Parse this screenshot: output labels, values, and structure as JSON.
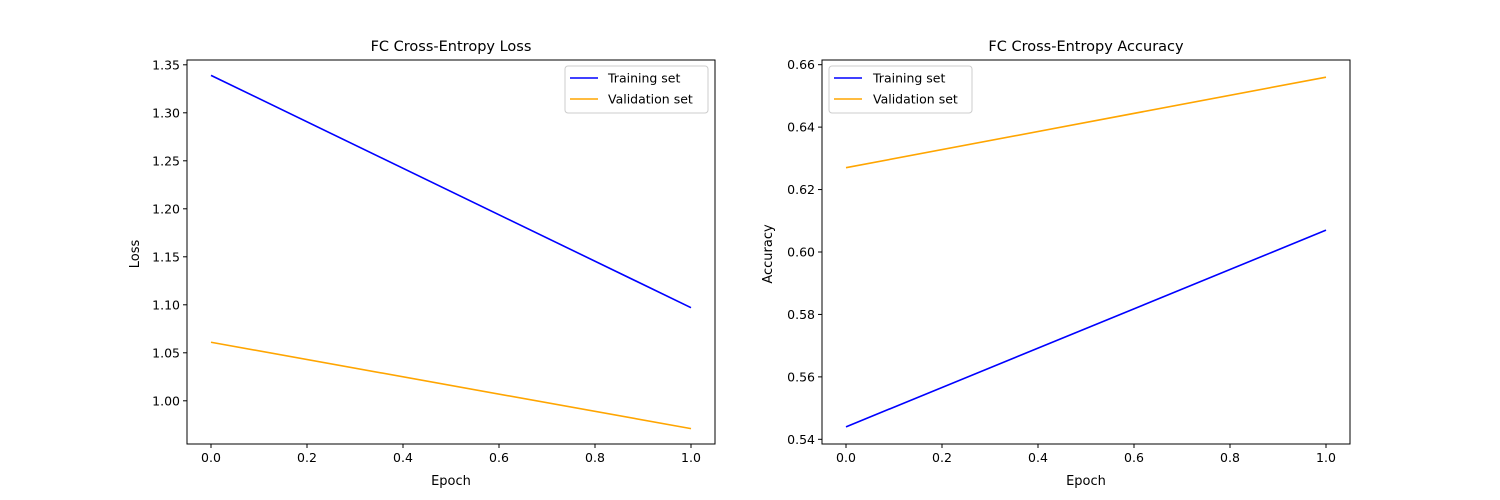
{
  "chart_data": [
    {
      "type": "line",
      "title": "FC Cross-Entropy Loss",
      "xlabel": "Epoch",
      "ylabel": "Loss",
      "xlim": [
        -0.05,
        1.05
      ],
      "ylim": [
        0.955,
        1.355
      ],
      "xticks": [
        0.0,
        0.2,
        0.4,
        0.6,
        0.8,
        1.0
      ],
      "xtick_labels": [
        "0.0",
        "0.2",
        "0.4",
        "0.6",
        "0.8",
        "1.0"
      ],
      "yticks": [
        1.0,
        1.05,
        1.1,
        1.15,
        1.2,
        1.25,
        1.3,
        1.35
      ],
      "ytick_labels": [
        "1.00",
        "1.05",
        "1.10",
        "1.15",
        "1.20",
        "1.25",
        "1.30",
        "1.35"
      ],
      "legend_position": "top-right",
      "grid": false,
      "x": [
        0,
        1
      ],
      "series": [
        {
          "name": "Training set",
          "color": "#0000ff",
          "values": [
            1.339,
            1.097
          ]
        },
        {
          "name": "Validation set",
          "color": "#ffa500",
          "values": [
            1.061,
            0.971
          ]
        }
      ]
    },
    {
      "type": "line",
      "title": "FC Cross-Entropy Accuracy",
      "xlabel": "Epoch",
      "ylabel": "Accuracy",
      "xlim": [
        -0.05,
        1.05
      ],
      "ylim": [
        0.5385,
        0.6615
      ],
      "xticks": [
        0.0,
        0.2,
        0.4,
        0.6,
        0.8,
        1.0
      ],
      "xtick_labels": [
        "0.0",
        "0.2",
        "0.4",
        "0.6",
        "0.8",
        "1.0"
      ],
      "yticks": [
        0.54,
        0.56,
        0.58,
        0.6,
        0.62,
        0.64,
        0.66
      ],
      "ytick_labels": [
        "0.54",
        "0.56",
        "0.58",
        "0.60",
        "0.62",
        "0.64",
        "0.66"
      ],
      "legend_position": "top-left",
      "grid": false,
      "x": [
        0,
        1
      ],
      "series": [
        {
          "name": "Training set",
          "color": "#0000ff",
          "values": [
            0.544,
            0.607
          ]
        },
        {
          "name": "Validation set",
          "color": "#ffa500",
          "values": [
            0.627,
            0.656
          ]
        }
      ]
    }
  ]
}
